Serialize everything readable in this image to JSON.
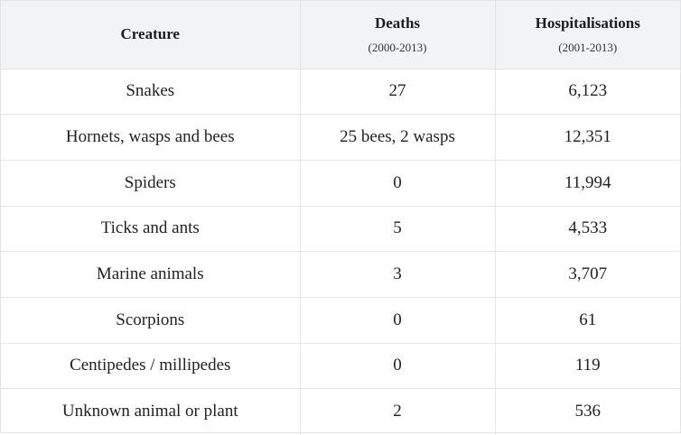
{
  "table": {
    "headers": [
      {
        "label": "Creature",
        "sub": ""
      },
      {
        "label": "Deaths",
        "sub": "(2000-2013)"
      },
      {
        "label": "Hospitalisations",
        "sub": "(2001-2013)"
      }
    ],
    "rows": [
      {
        "creature": "Snakes",
        "deaths": "27",
        "hospitalisations": "6,123"
      },
      {
        "creature": "Hornets, wasps and bees",
        "deaths": "25 bees, 2 wasps",
        "hospitalisations": "12,351"
      },
      {
        "creature": "Spiders",
        "deaths": "0",
        "hospitalisations": "11,994"
      },
      {
        "creature": "Ticks and ants",
        "deaths": "5",
        "hospitalisations": "4,533"
      },
      {
        "creature": "Marine animals",
        "deaths": "3",
        "hospitalisations": "3,707"
      },
      {
        "creature": "Scorpions",
        "deaths": "0",
        "hospitalisations": "61"
      },
      {
        "creature": "Centipedes / millipedes",
        "deaths": "0",
        "hospitalisations": "119"
      },
      {
        "creature": "Unknown animal or plant",
        "deaths": "2",
        "hospitalisations": "536"
      }
    ]
  }
}
